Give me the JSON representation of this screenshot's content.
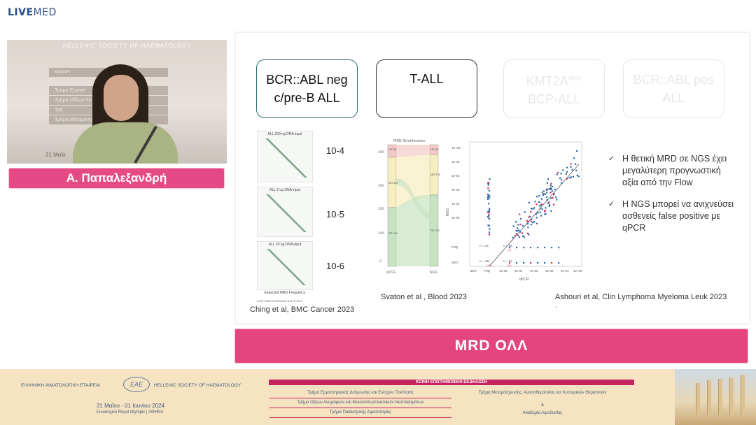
{
  "logo": {
    "brand_bold": "LIVE",
    "brand_rest": "MED"
  },
  "video": {
    "wall_title": "HELLENIC SOCIETY OF HAEMATOLOGY",
    "wall_signs": [
      "ΚΟΙΝΗ",
      "Τμήμα Εργαστ",
      "Τμήμα Οξέων Λευχα",
      "Τμή",
      "Τμήμα Μεταμόσχευσ"
    ],
    "wall_date": "31 Μαΐο"
  },
  "speaker": {
    "name": "Α. Παπαλεξανδρή"
  },
  "slide": {
    "boxes": [
      {
        "line1": "BCR::ABL neg",
        "line2": "c/pre-B ALL"
      },
      {
        "line1": "T-ALL",
        "line2": ""
      },
      {
        "line1": "KMT2A",
        "sup": "rear",
        "line2": "BCP-ALL"
      },
      {
        "line1": "BCR::ABL pos",
        "line2": "ALL"
      }
    ],
    "thumb_titles": [
      "ALL 200 ng DNA input",
      "ALL 2 ug DNA input",
      "ALL 20 ug DNA input"
    ],
    "thumb_xlabel": "Expected MRD Frequency",
    "thumb_legend": "● DRY4852   ● DM02093   ● BVP-8/13",
    "powers": [
      "10-4",
      "10-5",
      "10-6"
    ],
    "citations": {
      "ching": "Ching et al, BMC Cancer 2023",
      "svaton": "Svaton et al , Blood 2023",
      "ashouri": "Ashouri et al, Clin Lymphoma Myeloma Leuk 2023",
      "ashouri_dot": "."
    },
    "sankey": {
      "title": "MRD Stratification",
      "left_labels": [
        "HR 56",
        "MR 167",
        "SR 209"
      ],
      "right_labels": [
        "HR 40",
        "MR 135",
        "SR 257"
      ],
      "yticks": [
        "400",
        "300",
        "200",
        "100",
        "0"
      ],
      "xlabels": [
        "qPCR",
        "NGS"
      ],
      "colors": {
        "hr": "#f3c9c6",
        "mr": "#f6edc0",
        "sr": "#c7e3c1"
      }
    },
    "scatter": {
      "ylabel": "NGS",
      "xlabel": "qPCR",
      "yticks": [
        "1e+00",
        "1e-01",
        "1e-02",
        "1e-03",
        "1e-04",
        "1e-05",
        "PrtQ",
        "NEG"
      ],
      "xticks": [
        "NEG",
        "PrtQ",
        "1e-05",
        "1e-04",
        "1e-03",
        "1e-02",
        "1e-01",
        "1e+00"
      ],
      "annot_prtq": [
        "n = 23",
        "n = 38"
      ],
      "annot_neg": [
        "n = 411",
        "n = 97"
      ],
      "annot_small": [
        "(3)",
        "(10)",
        "(2)"
      ],
      "colors": {
        "blue": "#2e6aa6",
        "red": "#d12b5c",
        "line": "#555555"
      }
    },
    "bullets": [
      "Η θετική MRD σε NGS έχει μεγαλύτερη προγνωστική αξία από την Flow",
      "Η NGS μπορεί να ανιχνεύσει ασθενείς false positive με qPCR"
    ],
    "check_glyph": "✓"
  },
  "title_bar": {
    "text": "MRD ΟΛΛ"
  },
  "footer": {
    "society_gr": "ΕΛΛΗΝΙΚΗ ΑΙΜΑΤΟΛΟΓΙΚΗ ΕΤΑΙΡΕΙΑ",
    "society_en": "HELLENIC SOCIETY OF HAEMATOLOGY",
    "emblem": "ΕΑΕ",
    "dates": "31 Μαΐου - 01 Ιουνίου 2024",
    "venue": "Ξενοδοχείο Royal Olympic | ΑΘΗΝΑ",
    "banner": "ΚΟΙΝΗ ΕΠΙΣΤΗΜΟΝΙΚΗ ΕΚΔΗΛΩΣΗ",
    "depts_left": [
      "Τμήμα Εργαστηριακής Διάγνωσης και Ελέγχου Ποιότητας",
      "Τμήμα Οξέων Λευχαιμιών και Μυελοϋπερπλαστικών Νεοπλασμάτων",
      "Τμήμα Παιδιατρικής Αιματολογίας"
    ],
    "depts_right": [
      "Τμήμα Μεταμόσχευσης, Ανοσοθεραπείας και Κυτταρικών Θεραπειών",
      "&",
      "Ακαδημία Αιμοδοσίας"
    ]
  }
}
